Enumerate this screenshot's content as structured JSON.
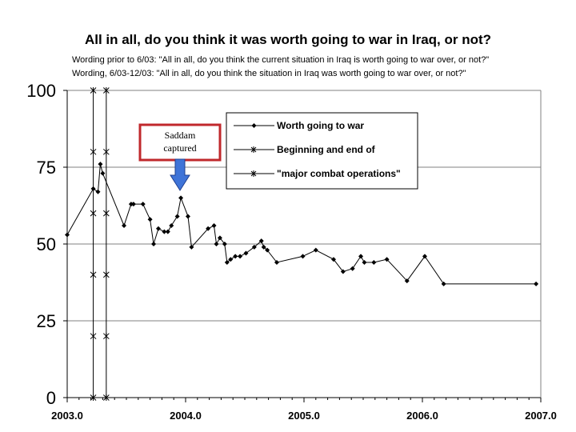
{
  "chart_data": {
    "type": "line",
    "title": "All in all, do you think it was worth going to war in Iraq, or not?",
    "subtitle_lines": [
      "Wording prior to 6/03: \"All in all, do you think the current situation in Iraq is worth going to war over, or not?\"",
      "Wording, 6/03-12/03: \"All in all, do you think the situation in Iraq was worth going to war over, or not?\""
    ],
    "xlim": [
      2003.0,
      2007.0
    ],
    "ylim": [
      0,
      100
    ],
    "x_ticks": [
      2003.0,
      2004.0,
      2005.0,
      2006.0,
      2007.0
    ],
    "x_tick_labels": [
      "2003.0",
      "2004.0",
      "2005.0",
      "2006.0",
      "2007.0"
    ],
    "y_ticks": [
      0,
      25,
      50,
      75,
      100
    ],
    "y_tick_labels": [
      "0",
      "25",
      "50",
      "75",
      "100"
    ],
    "grid": "horizontal",
    "series": [
      {
        "name": "Worth going to war",
        "marker": "diamond",
        "x": [
          2003.0,
          2003.22,
          2003.26,
          2003.28,
          2003.3,
          2003.48,
          2003.54,
          2003.56,
          2003.64,
          2003.7,
          2003.73,
          2003.77,
          2003.82,
          2003.85,
          2003.88,
          2003.93,
          2003.96,
          2004.02,
          2004.05,
          2004.19,
          2004.24,
          2004.26,
          2004.29,
          2004.33,
          2004.35,
          2004.38,
          2004.42,
          2004.46,
          2004.51,
          2004.58,
          2004.64,
          2004.66,
          2004.69,
          2004.77,
          2004.99,
          2005.1,
          2005.25,
          2005.33,
          2005.41,
          2005.48,
          2005.51,
          2005.59,
          2005.7,
          2005.87,
          2006.02,
          2006.18,
          2006.96
        ],
        "y": [
          53,
          68,
          67,
          76,
          73,
          56,
          63,
          63,
          63,
          58,
          50,
          55,
          54,
          54,
          56,
          59,
          65,
          59,
          49,
          55,
          56,
          50,
          52,
          50,
          44,
          45,
          46,
          46,
          47,
          49,
          51,
          49,
          48,
          44,
          46,
          48,
          45,
          41,
          42,
          46,
          44,
          44,
          45,
          38,
          46,
          37,
          37
        ]
      },
      {
        "name": "Beginning and end of \"major combat operations\"",
        "legend_lines": [
          "Beginning and end of",
          "\"major combat operations\""
        ],
        "marker": "asterisk",
        "lines_at_x": [
          2003.22,
          2003.33
        ],
        "marker_y": [
          0,
          20,
          40,
          60,
          80,
          100
        ]
      }
    ],
    "annotations": [
      {
        "text_lines": [
          "Saddam",
          "captured"
        ],
        "points_to_x": 2003.96,
        "style": "red box with blue down arrow"
      }
    ],
    "colors": {
      "series": "#000000",
      "box_border": "#c0282c",
      "arrow": "#3f74d8",
      "grid": "#808080"
    }
  }
}
